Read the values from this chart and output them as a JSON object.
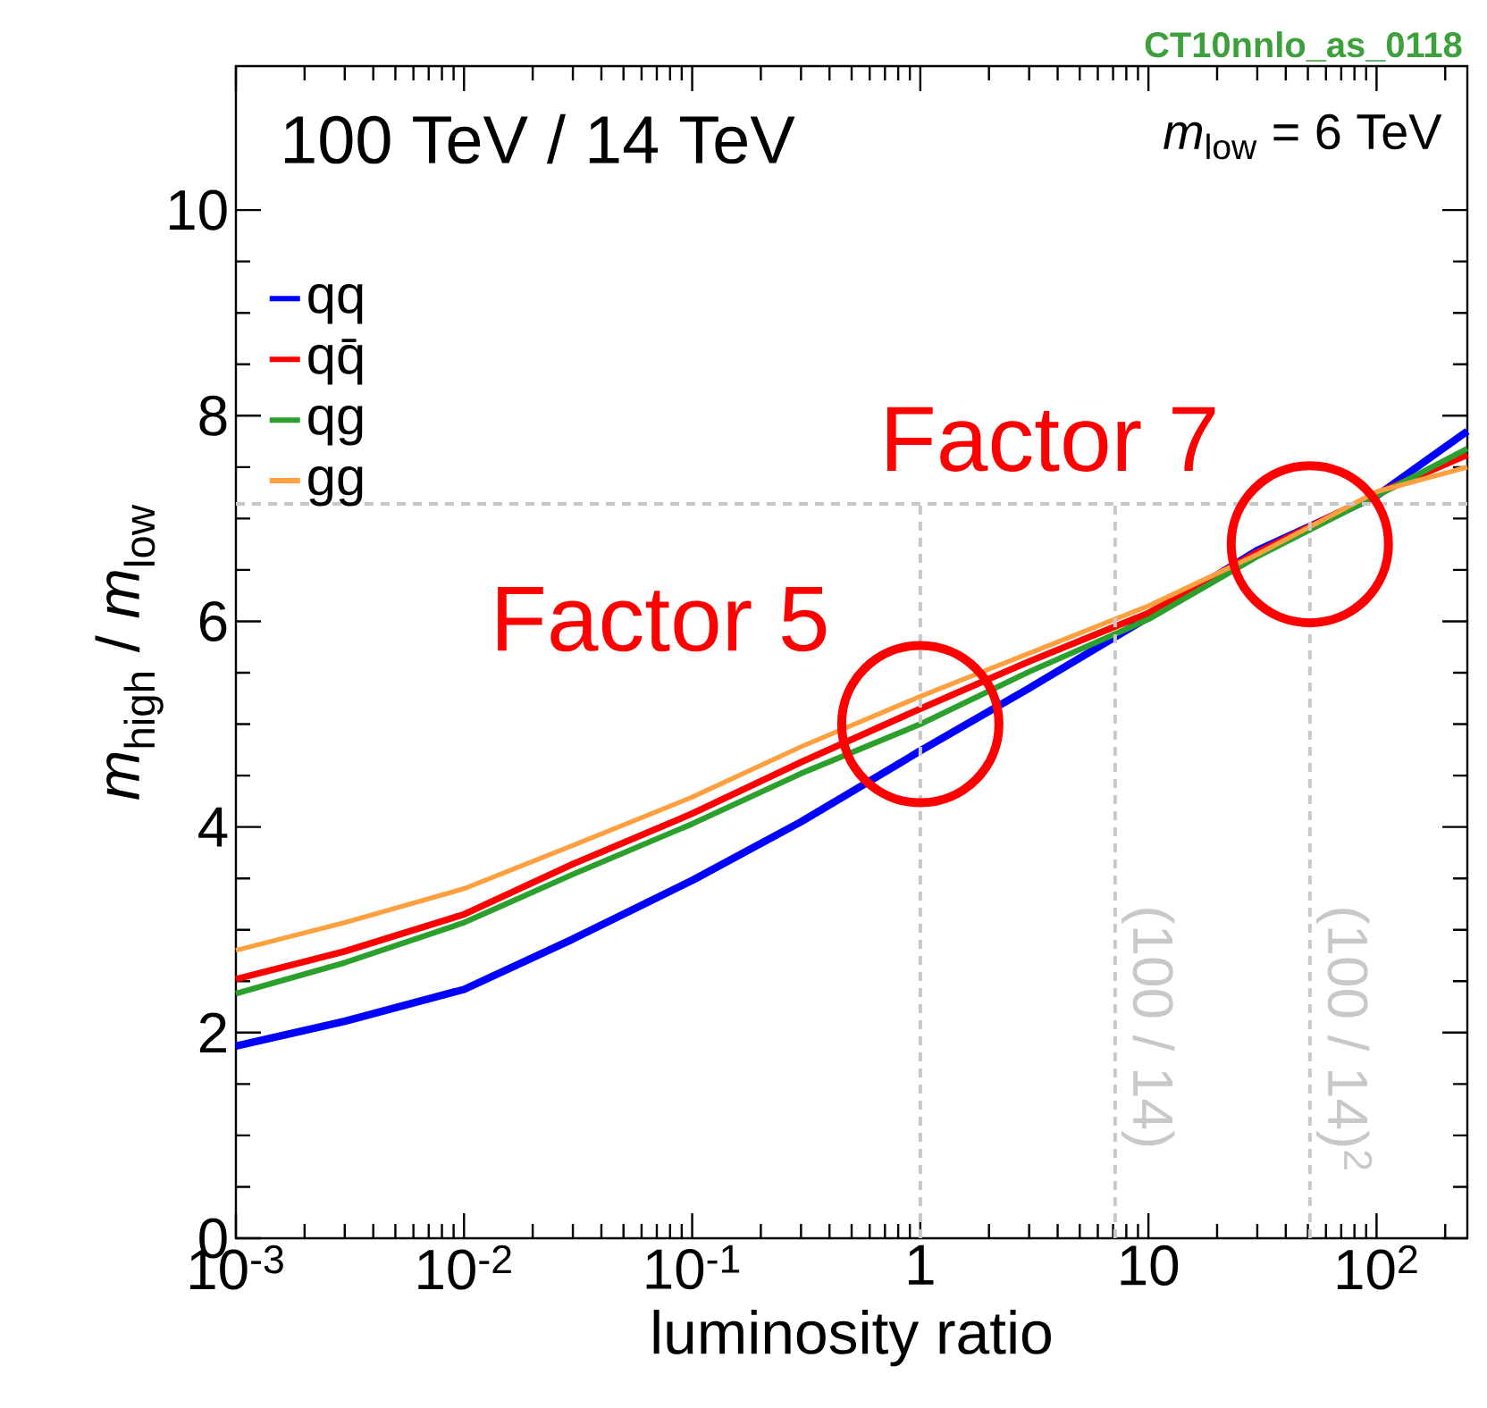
{
  "chart_data": {
    "type": "line",
    "xlabel": "luminosity ratio",
    "ylabel": "*m*$_{high}$ / *m*$_{low}$",
    "legend_title": "100 TeV / 14 TeV",
    "legend": "top left",
    "log": "x",
    "grid": false,
    "line_style": "solid",
    "x": [
      0.001,
      0.003,
      0.01,
      0.03,
      0.1,
      0.3,
      1,
      3,
      10,
      30,
      100,
      250
    ],
    "xlim": [
      0.001,
      250
    ],
    "ylim": [
      0,
      11.4
    ],
    "xticks": [
      {
        "value": 0.001,
        "label": "10$^{-3}$"
      },
      {
        "value": 0.01,
        "label": "10$^{-2}$"
      },
      {
        "value": 0.1,
        "label": "10$^{-1}$"
      },
      1,
      10,
      {
        "value": 100,
        "label": "10$^{2}$"
      }
    ],
    "yticks": [
      0,
      2,
      4,
      6,
      8,
      10
    ],
    "series": [
      {
        "name": "qq",
        "color": "#0000ff",
        "values": [
          1.87,
          2.11,
          2.42,
          2.91,
          3.48,
          4.05,
          4.74,
          5.35,
          6.04,
          6.69,
          7.22,
          7.85
        ]
      },
      {
        "name": "qq̄",
        "color": "#ff0000",
        "values": [
          2.52,
          2.79,
          3.15,
          3.64,
          4.13,
          4.63,
          5.15,
          5.61,
          6.08,
          6.67,
          7.24,
          7.62
        ]
      },
      {
        "name": "qg",
        "color": "#2ca02c",
        "values": [
          2.38,
          2.68,
          3.07,
          3.54,
          4.03,
          4.52,
          5.0,
          5.51,
          6.02,
          6.63,
          7.22,
          7.68
        ]
      },
      {
        "name": "gg",
        "color": "#ffa040",
        "values": [
          2.8,
          3.07,
          3.4,
          3.82,
          4.29,
          4.78,
          5.27,
          5.69,
          6.15,
          6.65,
          7.26,
          7.5
        ]
      }
    ],
    "ref_lines": [
      {
        "axis": "x",
        "value": 1,
        "color": "#c8c8c8",
        "line_style": "dashed"
      },
      {
        "axis": "x",
        "value": 7.142857,
        "color": "#c8c8c8",
        "line_style": "dashed"
      },
      {
        "axis": "x",
        "value": 51.0204,
        "color": "#c8c8c8",
        "line_style": "dashed"
      },
      {
        "axis": "y",
        "value": 7.142857,
        "color": "#c8c8c8",
        "line_style": "dashed"
      }
    ],
    "annotations": [
      "CT10nnlo_as_0118",
      "*m*$_{low}$ = 6 TeV",
      {
        "text": "Factor 5",
        "x": 1,
        "y": 5.0
      },
      {
        "text": "Factor 7",
        "x": 51,
        "y": 6.75
      },
      {
        "text": "(100 / 14)",
        "x": 7.142857,
        "y": 3.3
      },
      {
        "text": "(100 / 14)$^{2}$",
        "x": 51.0204,
        "y": 3.3
      }
    ]
  }
}
